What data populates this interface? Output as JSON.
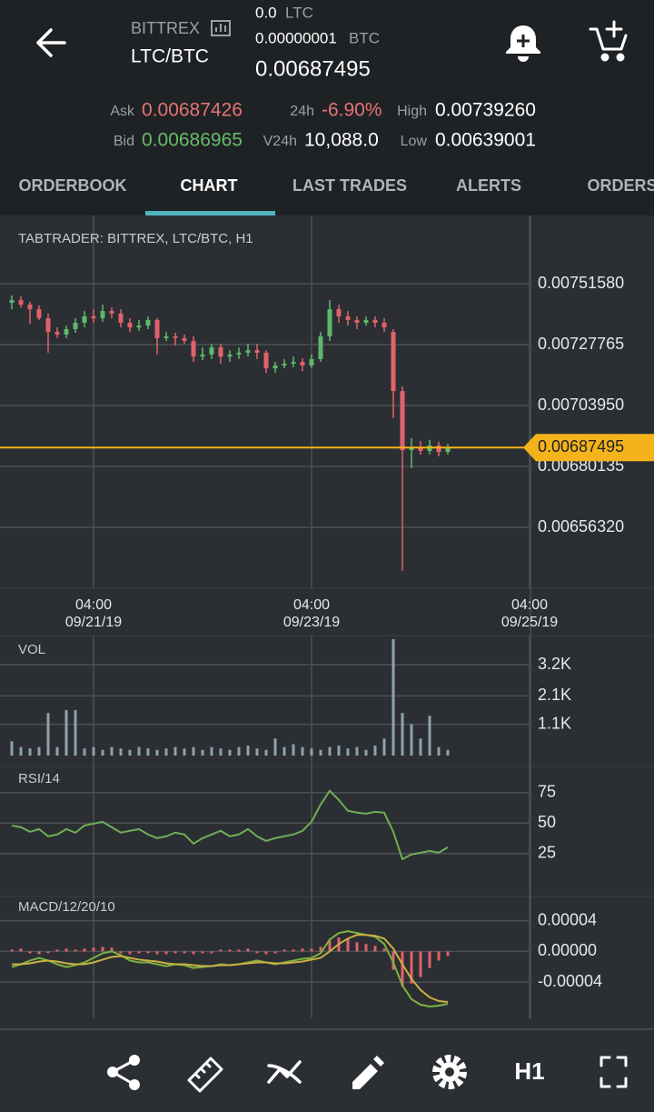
{
  "header": {
    "exchange": "BITTREX",
    "pair": "LTC/BTC",
    "amount": "0.0",
    "amount_unit": "LTC",
    "step": "0.00000001",
    "step_unit": "BTC",
    "price": "0.00687495",
    "ask_label": "Ask",
    "ask": "0.00687426",
    "bid_label": "Bid",
    "bid": "0.00686965",
    "change_label": "24h",
    "change": "-6.90%",
    "volume_label": "V24h",
    "volume": "10,088.0",
    "high_label": "High",
    "high": "0.00739260",
    "low_label": "Low",
    "low": "0.00639001"
  },
  "tabs": [
    "ORDERBOOK",
    "CHART",
    "LAST TRADES",
    "ALERTS",
    "ORDERS"
  ],
  "toolbar": {
    "interval": "H1"
  },
  "chart_data": [
    {
      "type": "candlestick",
      "title": "TABTRADER: BITTREX, LTC/BTC, H1",
      "categories": [
        null,
        null,
        null,
        null,
        null,
        null,
        null,
        null,
        null,
        "09/21/19",
        null,
        null,
        null,
        null,
        null,
        null,
        null,
        null,
        null,
        null,
        null,
        null,
        null,
        null,
        null,
        null,
        null,
        null,
        null,
        null,
        null,
        null,
        null,
        "09/23/19",
        null,
        null,
        null,
        null,
        null,
        null,
        null,
        null,
        null,
        null,
        null,
        null,
        null,
        null,
        null,
        null,
        null,
        null,
        null,
        null,
        null,
        null,
        null,
        "09/25/19"
      ],
      "category_times": [
        null,
        null,
        null,
        null,
        null,
        null,
        null,
        null,
        null,
        "04:00",
        null,
        null,
        null,
        null,
        null,
        null,
        null,
        null,
        null,
        null,
        null,
        null,
        null,
        null,
        null,
        null,
        null,
        null,
        null,
        null,
        null,
        null,
        null,
        "04:00",
        null,
        null,
        null,
        null,
        null,
        null,
        null,
        null,
        null,
        null,
        null,
        null,
        null,
        null,
        null,
        null,
        null,
        null,
        null,
        null,
        null,
        null,
        null,
        "04:00"
      ],
      "open": [
        0.007441,
        0.007452,
        0.007434,
        0.007416,
        0.007381,
        0.007327,
        0.007317,
        0.007338,
        0.007363,
        0.007388,
        0.007381,
        0.007409,
        0.007399,
        0.007363,
        0.007345,
        0.007352,
        0.007374,
        0.007303,
        0.00731,
        0.007303,
        0.007292,
        0.007231,
        0.007239,
        0.007267,
        0.007231,
        0.007239,
        0.007246,
        0.007256,
        0.007246,
        0.007185,
        0.007196,
        0.007203,
        0.00721,
        0.007196,
        0.007221,
        0.00731,
        0.007416,
        0.007388,
        0.007374,
        0.007363,
        0.007374,
        0.007363,
        0.007327,
        0.007096,
        0.006865,
        0.006875,
        0.006862,
        0.006883,
        0.006858,
        null,
        null,
        null,
        null,
        null,
        null,
        null,
        null,
        null
      ],
      "high": [
        0.00747,
        0.007466,
        0.007445,
        0.007431,
        0.007399,
        0.007345,
        0.007352,
        0.007381,
        0.007409,
        0.007416,
        0.007434,
        0.007423,
        0.007416,
        0.007381,
        0.007374,
        0.007388,
        0.007381,
        0.007327,
        0.007324,
        0.007317,
        0.00731,
        0.007267,
        0.007281,
        0.007281,
        0.007256,
        0.007267,
        0.007281,
        0.007281,
        0.007256,
        0.00721,
        0.007221,
        0.007231,
        0.007224,
        0.007239,
        0.007327,
        0.007452,
        0.007434,
        0.007409,
        0.007388,
        0.007388,
        0.007388,
        0.007381,
        0.007338,
        0.007114,
        0.006912,
        0.006901,
        0.006905,
        0.006898,
        0.00689,
        null,
        null,
        null,
        null,
        null,
        null,
        null,
        null,
        null
      ],
      "low": [
        0.007416,
        0.007423,
        0.007359,
        0.007374,
        0.007246,
        0.007303,
        0.007303,
        0.007324,
        0.007345,
        0.007363,
        0.007367,
        0.007381,
        0.007345,
        0.007327,
        0.007331,
        0.007338,
        0.007239,
        0.007292,
        0.007274,
        0.007281,
        0.00721,
        0.007217,
        0.007221,
        0.007203,
        0.00721,
        0.007221,
        0.007231,
        0.007221,
        0.007167,
        0.007167,
        0.007185,
        0.007189,
        0.007174,
        0.007185,
        0.00721,
        0.007292,
        0.007363,
        0.007352,
        0.007338,
        0.007352,
        0.007345,
        0.007327,
        0.00699,
        0.006393,
        0.006794,
        0.006848,
        0.006848,
        0.006841,
        0.006848,
        null,
        null,
        null,
        null,
        null,
        null,
        null,
        null,
        null
      ],
      "close": [
        0.007452,
        0.007434,
        0.007416,
        0.007381,
        0.007327,
        0.007317,
        0.007338,
        0.007363,
        0.007388,
        0.007381,
        0.007409,
        0.007399,
        0.007363,
        0.007345,
        0.007352,
        0.007374,
        0.007303,
        0.00731,
        0.007303,
        0.007292,
        0.007231,
        0.007239,
        0.007267,
        0.007231,
        0.007239,
        0.007246,
        0.007256,
        0.007246,
        0.007185,
        0.007196,
        0.007203,
        0.00721,
        0.007196,
        0.007221,
        0.00731,
        0.007416,
        0.007388,
        0.007374,
        0.007363,
        0.007374,
        0.007363,
        0.007345,
        0.007096,
        0.006865,
        0.006875,
        0.006862,
        0.006883,
        0.006858,
        0.006875,
        null,
        null,
        null,
        null,
        null,
        null,
        null,
        null,
        null
      ],
      "up_color": "#5fb86a",
      "down_color": "#e0626b",
      "ylim": [
        0.00632505,
        0.0077824
      ],
      "yticks": [
        {
          "value": 0.0075158,
          "label": "0.00751580"
        },
        {
          "value": 0.00727765,
          "label": "0.00727765"
        },
        {
          "value": 0.0070395,
          "label": "0.00703950"
        },
        {
          "value": 0.00680135,
          "label": "0.00680135"
        },
        {
          "value": 0.0065632,
          "label": "0.00656320"
        }
      ],
      "price_line": {
        "value": 0.00687495,
        "label": "0.00687495",
        "color": "#f5b31b"
      },
      "grid": true
    },
    {
      "type": "bar",
      "title": "VOL",
      "color": "#8ea2ad",
      "values": [
        500,
        300,
        250,
        300,
        1500,
        300,
        1600,
        1600,
        250,
        300,
        200,
        300,
        250,
        200,
        300,
        250,
        200,
        250,
        300,
        250,
        300,
        200,
        300,
        250,
        200,
        300,
        350,
        250,
        200,
        600,
        300,
        400,
        300,
        250,
        200,
        300,
        350,
        250,
        300,
        200,
        350,
        600,
        4100,
        1500,
        1100,
        600,
        1400,
        300,
        200,
        null,
        null,
        null,
        null,
        null,
        null,
        null,
        null,
        null
      ],
      "ylim": [
        0,
        4224
      ],
      "yticks": [
        {
          "value": 3200,
          "label": "3.2K"
        },
        {
          "value": 2100,
          "label": "2.1K"
        },
        {
          "value": 1100,
          "label": "1.1K"
        }
      ],
      "grid": true
    },
    {
      "type": "line",
      "title": "RSI/14",
      "color": "#6fae55",
      "values": [
        48.1,
        46.6,
        42.9,
        45.1,
        39.2,
        40.7,
        45.1,
        42.2,
        48.1,
        49.6,
        51.1,
        46.6,
        42.2,
        43.7,
        45.1,
        40.7,
        37.7,
        39.2,
        42.2,
        40.7,
        33.2,
        37.7,
        40.7,
        43.7,
        39.2,
        40.7,
        45.1,
        39.2,
        35.4,
        37.7,
        39.2,
        40.7,
        43.7,
        51.1,
        65.3,
        76.5,
        69.0,
        60.1,
        58.6,
        57.8,
        59.3,
        58.6,
        42.9,
        20.5,
        24.3,
        25.7,
        27.2,
        25.7,
        30.2,
        null,
        null,
        null,
        null,
        null,
        null,
        null,
        null,
        null
      ],
      "ylim": [
        -5,
        95
      ],
      "yticks": [
        75,
        50,
        25
      ],
      "grid": true
    },
    {
      "type": "combo",
      "title": "MACD/12/20/10",
      "series": [
        {
          "type": "bar",
          "color": "#e0626b",
          "values": [
            2.4e-06,
            3.6e-06,
            -2.4e-06,
            -3.6e-06,
            -2.4e-06,
            2.4e-06,
            3.6e-06,
            2.4e-06,
            3.6e-06,
            4.8e-06,
            6e-06,
            4.8e-06,
            -2.4e-06,
            -3.6e-06,
            -2.4e-06,
            -2.4e-06,
            -3.6e-06,
            -3.6e-06,
            -2.4e-06,
            -2.4e-06,
            -3.6e-06,
            -2.4e-06,
            -2.4e-06,
            2.4e-06,
            2.4e-06,
            2.4e-06,
            3.6e-06,
            -2.4e-06,
            -3.6e-06,
            -2.4e-06,
            2.4e-06,
            2.4e-06,
            3.6e-06,
            3.6e-06,
            6e-06,
            1.43e-05,
            1.79e-05,
            1.67e-05,
            1.19e-05,
            9.6e-06,
            7.2e-06,
            3.6e-06,
            -2.39e-05,
            -4.54e-05,
            -4.18e-05,
            -3.34e-05,
            -2.15e-05,
            -1.19e-05,
            -6e-06,
            null,
            null,
            null,
            null,
            null,
            null,
            null,
            null,
            null
          ]
        },
        {
          "type": "line",
          "color": "#7cb342",
          "values": [
            -2.03e-05,
            -1.67e-05,
            -1.19e-05,
            -8.4e-06,
            -1.19e-05,
            -1.67e-05,
            -2.03e-05,
            -1.79e-05,
            -1.43e-05,
            -8.4e-06,
            -2.4e-06,
            0,
            -4.8e-06,
            -1.19e-05,
            -1.43e-05,
            -1.43e-05,
            -1.67e-05,
            -1.91e-05,
            -1.67e-05,
            -1.79e-05,
            -2.15e-05,
            -2.03e-05,
            -1.91e-05,
            -1.67e-05,
            -1.79e-05,
            -1.67e-05,
            -1.43e-05,
            -1.19e-05,
            -1.43e-05,
            -1.67e-05,
            -1.43e-05,
            -1.19e-05,
            -9.6e-06,
            -8.4e-06,
            -2.4e-06,
            1.55e-05,
            2.39e-05,
            2.63e-05,
            2.39e-05,
            2.15e-05,
            1.91e-05,
            9.6e-06,
            -1.43e-05,
            -4.42e-05,
            -6.21e-05,
            -6.93e-05,
            -7.16e-05,
            -7.04e-05,
            -6.81e-05,
            null,
            null,
            null,
            null,
            null,
            null,
            null,
            null,
            null
          ]
        },
        {
          "type": "line",
          "color": "#c9b043",
          "values": [
            -1.67e-05,
            -1.67e-05,
            -1.55e-05,
            -1.31e-05,
            -1.19e-05,
            -1.31e-05,
            -1.55e-05,
            -1.67e-05,
            -1.67e-05,
            -1.43e-05,
            -1.07e-05,
            -7.2e-06,
            -6e-06,
            -8.4e-06,
            -1.07e-05,
            -1.19e-05,
            -1.31e-05,
            -1.55e-05,
            -1.67e-05,
            -1.67e-05,
            -1.79e-05,
            -1.91e-05,
            -1.91e-05,
            -1.79e-05,
            -1.79e-05,
            -1.67e-05,
            -1.55e-05,
            -1.43e-05,
            -1.43e-05,
            -1.55e-05,
            -1.55e-05,
            -1.43e-05,
            -1.31e-05,
            -1.07e-05,
            -8.4e-06,
            0,
            9.6e-06,
            1.67e-05,
            2.15e-05,
            2.15e-05,
            2.03e-05,
            1.67e-05,
            3.6e-06,
            -1.67e-05,
            -3.58e-05,
            -5.01e-05,
            -5.97e-05,
            -6.45e-05,
            -6.57e-05,
            null,
            null,
            null,
            null,
            null,
            null,
            null,
            null,
            null
          ]
        }
      ],
      "ylim": [
        -8.7e-05,
        6.9e-05
      ],
      "yticks": [
        {
          "value": 4e-05,
          "label": "0.00004"
        },
        {
          "value": 0,
          "label": "0.00000"
        },
        {
          "value": -4e-05,
          "label": "-0.00004"
        }
      ],
      "grid": true
    }
  ]
}
